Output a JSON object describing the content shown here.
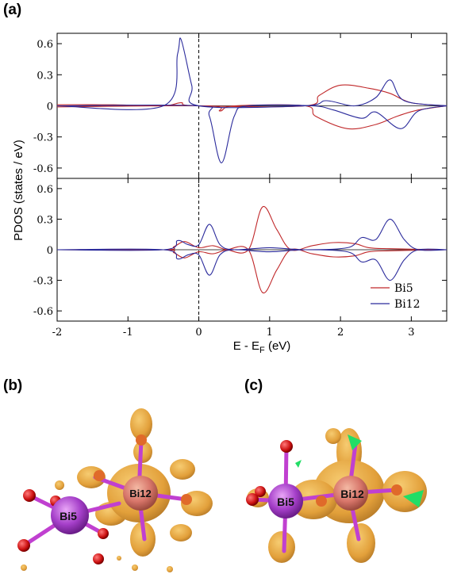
{
  "panels": {
    "a": "(a)",
    "b": "(b)",
    "c": "(c)"
  },
  "colors": {
    "bi5": "#c0282a",
    "bi12": "#2b2b9c",
    "isosurface": "#e8a21f",
    "bi_atom": "#a53fc9",
    "bi_atom_center": "#e07060",
    "o_atom": "#cc1111",
    "bond": "#c040d0",
    "green": "#22dd66"
  },
  "chart_data": [
    {
      "type": "line",
      "title": "",
      "xlabel": "E - E_F (eV)",
      "ylabel": "PDOS (states / eV)",
      "xlim": [
        -2,
        3.5
      ],
      "ylim": [
        -0.7,
        0.7
      ],
      "xticks": [
        -2,
        -1,
        0,
        1,
        2,
        3
      ],
      "yticks": [
        0.6,
        0.3,
        0,
        -0.3,
        -0.6
      ],
      "fermi_line_x": 0,
      "series": [
        {
          "name": "Bi5",
          "spin_up": [
            [
              -2,
              0.01
            ],
            [
              -1.2,
              0.01
            ],
            [
              -0.5,
              0.0
            ],
            [
              -0.25,
              0.03
            ],
            [
              -0.05,
              0.0
            ],
            [
              1.5,
              0.0
            ],
            [
              1.7,
              0.1
            ],
            [
              2.0,
              0.2
            ],
            [
              2.4,
              0.17
            ],
            [
              2.7,
              0.12
            ],
            [
              3.0,
              0.03
            ],
            [
              3.5,
              0.0
            ]
          ],
          "spin_down": [
            [
              -2,
              -0.01
            ],
            [
              0.1,
              0.0
            ],
            [
              0.3,
              -0.05
            ],
            [
              0.5,
              0.0
            ],
            [
              1.5,
              0.0
            ],
            [
              1.65,
              -0.1
            ],
            [
              2.1,
              -0.22
            ],
            [
              2.5,
              -0.18
            ],
            [
              2.8,
              -0.1
            ],
            [
              3.1,
              -0.04
            ],
            [
              3.5,
              0.0
            ]
          ]
        },
        {
          "name": "Bi12",
          "spin_up": [
            [
              -2,
              0.0
            ],
            [
              -0.5,
              0.0
            ],
            [
              -0.3,
              0.5
            ],
            [
              -0.25,
              0.64
            ],
            [
              -0.1,
              0.2
            ],
            [
              0.0,
              0.0
            ],
            [
              1.5,
              0.0
            ],
            [
              1.8,
              0.05
            ],
            [
              2.2,
              0.0
            ],
            [
              2.5,
              0.08
            ],
            [
              2.7,
              0.25
            ],
            [
              2.9,
              0.05
            ],
            [
              3.5,
              0.0
            ]
          ],
          "spin_down": [
            [
              -2,
              0.0
            ],
            [
              0.0,
              0.0
            ],
            [
              0.15,
              -0.1
            ],
            [
              0.32,
              -0.55
            ],
            [
              0.5,
              -0.1
            ],
            [
              0.7,
              0.0
            ],
            [
              1.6,
              0.0
            ],
            [
              1.9,
              -0.04
            ],
            [
              2.3,
              -0.12
            ],
            [
              2.5,
              -0.06
            ],
            [
              2.85,
              -0.22
            ],
            [
              3.1,
              -0.05
            ],
            [
              3.5,
              0.0
            ]
          ]
        }
      ]
    },
    {
      "type": "line",
      "title": "",
      "xlabel": "E - E_F (eV)",
      "ylabel": "PDOS (states / eV)",
      "xlim": [
        -2,
        3.5
      ],
      "ylim": [
        -0.7,
        0.7
      ],
      "xticks": [
        -2,
        -1,
        0,
        1,
        2,
        3
      ],
      "yticks": [
        0.6,
        0.3,
        0,
        -0.3,
        -0.6
      ],
      "fermi_line_x": 0,
      "legend": {
        "placement": "bottom-right"
      },
      "series": [
        {
          "name": "Bi5",
          "spin_up": [
            [
              -2,
              0.0
            ],
            [
              -0.5,
              0.0
            ],
            [
              -0.35,
              0.03
            ],
            [
              -0.2,
              0.08
            ],
            [
              0.0,
              0.02
            ],
            [
              0.2,
              0.04
            ],
            [
              0.4,
              0.0
            ],
            [
              0.7,
              0.0
            ],
            [
              0.9,
              0.42
            ],
            [
              1.1,
              0.2
            ],
            [
              1.3,
              0.0
            ],
            [
              1.6,
              0.04
            ],
            [
              1.9,
              0.07
            ],
            [
              2.2,
              0.06
            ],
            [
              2.4,
              0.02
            ],
            [
              2.7,
              0.01
            ],
            [
              3.5,
              0.0
            ]
          ],
          "spin_down": [
            [
              -2,
              0.0
            ],
            [
              -0.5,
              0.0
            ],
            [
              -0.35,
              -0.03
            ],
            [
              -0.2,
              -0.08
            ],
            [
              0.0,
              -0.02
            ],
            [
              0.2,
              -0.04
            ],
            [
              0.4,
              0.0
            ],
            [
              0.7,
              0.0
            ],
            [
              0.9,
              -0.42
            ],
            [
              1.1,
              -0.2
            ],
            [
              1.3,
              0.0
            ],
            [
              1.6,
              -0.04
            ],
            [
              1.9,
              -0.07
            ],
            [
              2.2,
              -0.06
            ],
            [
              2.4,
              -0.02
            ],
            [
              2.7,
              -0.01
            ],
            [
              3.5,
              0.0
            ]
          ]
        },
        {
          "name": "Bi12",
          "spin_up": [
            [
              -2,
              0.0
            ],
            [
              -0.5,
              0.0
            ],
            [
              -0.3,
              0.09
            ],
            [
              -0.15,
              0.05
            ],
            [
              0.0,
              0.05
            ],
            [
              0.15,
              0.25
            ],
            [
              0.3,
              0.05
            ],
            [
              0.5,
              0.0
            ],
            [
              1.0,
              0.02
            ],
            [
              1.5,
              0.0
            ],
            [
              2.1,
              0.02
            ],
            [
              2.3,
              0.12
            ],
            [
              2.5,
              0.1
            ],
            [
              2.7,
              0.3
            ],
            [
              2.9,
              0.1
            ],
            [
              3.1,
              0.0
            ],
            [
              3.5,
              0.0
            ]
          ],
          "spin_down": [
            [
              -2,
              0.0
            ],
            [
              -0.5,
              0.0
            ],
            [
              -0.3,
              -0.09
            ],
            [
              -0.15,
              -0.05
            ],
            [
              0.0,
              -0.05
            ],
            [
              0.15,
              -0.25
            ],
            [
              0.3,
              -0.05
            ],
            [
              0.5,
              0.0
            ],
            [
              1.0,
              -0.02
            ],
            [
              1.5,
              0.0
            ],
            [
              2.1,
              -0.02
            ],
            [
              2.3,
              -0.12
            ],
            [
              2.5,
              -0.1
            ],
            [
              2.7,
              -0.3
            ],
            [
              2.9,
              -0.1
            ],
            [
              3.1,
              0.0
            ],
            [
              3.5,
              0.0
            ]
          ]
        }
      ]
    }
  ],
  "atoms_b": {
    "bi5": "Bi5",
    "bi12": "Bi12"
  },
  "atoms_c": {
    "bi5": "Bi5",
    "bi12": "Bi12"
  }
}
